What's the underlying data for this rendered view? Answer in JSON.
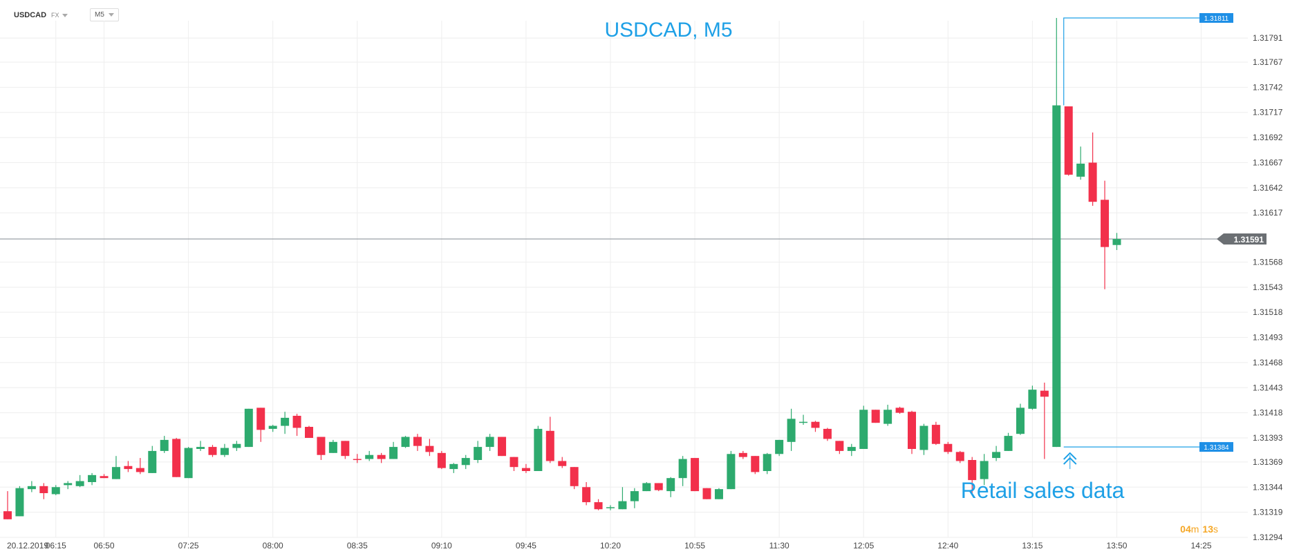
{
  "header": {
    "symbol": "USDCAD",
    "market": "FX",
    "timeframe": "M5"
  },
  "countdown": {
    "minutes": "04",
    "minutes_unit": "m",
    "seconds": "13",
    "seconds_unit": "s"
  },
  "colors": {
    "up": "#2daa6e",
    "down": "#f2304b",
    "annotation": "#1ea0e6",
    "label_bg": "#1e8fe6",
    "current_label_bg": "#6b6f73",
    "grid": "#eeeeee",
    "countdown": "#f5a623"
  },
  "chart_data": {
    "type": "candlestick",
    "title": "USDCAD, M5",
    "y_ticks": [
      "1.31791",
      "1.31767",
      "1.31742",
      "1.31717",
      "1.31692",
      "1.31667",
      "1.31642",
      "1.31617",
      "1.31568",
      "1.31543",
      "1.31518",
      "1.31493",
      "1.31468",
      "1.31443",
      "1.31418",
      "1.31393",
      "1.31369",
      "1.31344",
      "1.31319",
      "1.31294"
    ],
    "ylim": [
      1.31294,
      1.31811
    ],
    "x_date": "20.12.2019",
    "x_ticks": [
      {
        "label": "06:15",
        "index": 4
      },
      {
        "label": "06:50",
        "index": 8
      },
      {
        "label": "07:25",
        "index": 15
      },
      {
        "label": "08:00",
        "index": 22
      },
      {
        "label": "08:35",
        "index": 29
      },
      {
        "label": "09:10",
        "index": 36
      },
      {
        "label": "09:45",
        "index": 43
      },
      {
        "label": "10:20",
        "index": 50
      },
      {
        "label": "10:55",
        "index": 57
      },
      {
        "label": "11:30",
        "index": 64
      },
      {
        "label": "12:05",
        "index": 71
      },
      {
        "label": "12:40",
        "index": 78
      },
      {
        "label": "13:15",
        "index": 85
      },
      {
        "label": "13:50",
        "index": 92
      },
      {
        "label": "14:25",
        "index": 99
      }
    ],
    "current_price": "1.31591",
    "high_label": "1.31811",
    "low_label": "1.31384",
    "annotation_text": "Retail sales data",
    "candles": [
      {
        "o": 1.3132,
        "h": 1.3134,
        "l": 1.31312,
        "c": 1.31312
      },
      {
        "o": 1.31315,
        "h": 1.31345,
        "l": 1.31315,
        "c": 1.31343
      },
      {
        "o": 1.31342,
        "h": 1.3135,
        "l": 1.31339,
        "c": 1.31345
      },
      {
        "o": 1.31345,
        "h": 1.31348,
        "l": 1.31332,
        "c": 1.31338
      },
      {
        "o": 1.31337,
        "h": 1.31346,
        "l": 1.31336,
        "c": 1.31344
      },
      {
        "o": 1.31346,
        "h": 1.3135,
        "l": 1.31342,
        "c": 1.31348
      },
      {
        "o": 1.31345,
        "h": 1.31356,
        "l": 1.31344,
        "c": 1.3135
      },
      {
        "o": 1.31349,
        "h": 1.31358,
        "l": 1.31346,
        "c": 1.31356
      },
      {
        "o": 1.31355,
        "h": 1.31357,
        "l": 1.31353,
        "c": 1.31353
      },
      {
        "o": 1.31352,
        "h": 1.31375,
        "l": 1.31352,
        "c": 1.31364
      },
      {
        "o": 1.31365,
        "h": 1.3137,
        "l": 1.31359,
        "c": 1.31362
      },
      {
        "o": 1.31363,
        "h": 1.31373,
        "l": 1.31357,
        "c": 1.31359
      },
      {
        "o": 1.31358,
        "h": 1.31385,
        "l": 1.31358,
        "c": 1.3138
      },
      {
        "o": 1.3138,
        "h": 1.31395,
        "l": 1.31378,
        "c": 1.31391
      },
      {
        "o": 1.31392,
        "h": 1.31393,
        "l": 1.31354,
        "c": 1.31354
      },
      {
        "o": 1.31353,
        "h": 1.31384,
        "l": 1.31353,
        "c": 1.31383
      },
      {
        "o": 1.31382,
        "h": 1.3139,
        "l": 1.3138,
        "c": 1.31384
      },
      {
        "o": 1.31384,
        "h": 1.31386,
        "l": 1.31374,
        "c": 1.31376
      },
      {
        "o": 1.31376,
        "h": 1.31387,
        "l": 1.31374,
        "c": 1.31383
      },
      {
        "o": 1.31383,
        "h": 1.3139,
        "l": 1.3138,
        "c": 1.31387
      },
      {
        "o": 1.31384,
        "h": 1.31422,
        "l": 1.31384,
        "c": 1.31422
      },
      {
        "o": 1.31423,
        "h": 1.31423,
        "l": 1.31389,
        "c": 1.31401
      },
      {
        "o": 1.31402,
        "h": 1.31406,
        "l": 1.31399,
        "c": 1.31405
      },
      {
        "o": 1.31405,
        "h": 1.31419,
        "l": 1.31397,
        "c": 1.31413
      },
      {
        "o": 1.31415,
        "h": 1.31417,
        "l": 1.31395,
        "c": 1.31403
      },
      {
        "o": 1.31404,
        "h": 1.31405,
        "l": 1.31393,
        "c": 1.31393
      },
      {
        "o": 1.31394,
        "h": 1.31394,
        "l": 1.31371,
        "c": 1.31376
      },
      {
        "o": 1.31378,
        "h": 1.31391,
        "l": 1.31378,
        "c": 1.31389
      },
      {
        "o": 1.3139,
        "h": 1.3139,
        "l": 1.31372,
        "c": 1.31375
      },
      {
        "o": 1.31372,
        "h": 1.31377,
        "l": 1.31368,
        "c": 1.31371
      },
      {
        "o": 1.31372,
        "h": 1.3138,
        "l": 1.3137,
        "c": 1.31376
      },
      {
        "o": 1.31376,
        "h": 1.31378,
        "l": 1.31368,
        "c": 1.31372
      },
      {
        "o": 1.31372,
        "h": 1.31389,
        "l": 1.31372,
        "c": 1.31384
      },
      {
        "o": 1.31384,
        "h": 1.31395,
        "l": 1.31383,
        "c": 1.31394
      },
      {
        "o": 1.31394,
        "h": 1.31397,
        "l": 1.3138,
        "c": 1.31385
      },
      {
        "o": 1.31385,
        "h": 1.31392,
        "l": 1.31375,
        "c": 1.31379
      },
      {
        "o": 1.31378,
        "h": 1.3138,
        "l": 1.31362,
        "c": 1.31363
      },
      {
        "o": 1.31362,
        "h": 1.31368,
        "l": 1.31358,
        "c": 1.31367
      },
      {
        "o": 1.31366,
        "h": 1.31376,
        "l": 1.31362,
        "c": 1.31373
      },
      {
        "o": 1.31371,
        "h": 1.3139,
        "l": 1.31368,
        "c": 1.31384
      },
      {
        "o": 1.31384,
        "h": 1.31397,
        "l": 1.3138,
        "c": 1.31394
      },
      {
        "o": 1.31394,
        "h": 1.31394,
        "l": 1.31375,
        "c": 1.31375
      },
      {
        "o": 1.31374,
        "h": 1.31374,
        "l": 1.3136,
        "c": 1.31364
      },
      {
        "o": 1.31363,
        "h": 1.31367,
        "l": 1.31358,
        "c": 1.3136
      },
      {
        "o": 1.3136,
        "h": 1.31405,
        "l": 1.3136,
        "c": 1.31402
      },
      {
        "o": 1.314,
        "h": 1.31414,
        "l": 1.31368,
        "c": 1.3137
      },
      {
        "o": 1.3137,
        "h": 1.31374,
        "l": 1.31363,
        "c": 1.31365
      },
      {
        "o": 1.31364,
        "h": 1.31364,
        "l": 1.31342,
        "c": 1.31345
      },
      {
        "o": 1.31344,
        "h": 1.31349,
        "l": 1.31326,
        "c": 1.31329
      },
      {
        "o": 1.31329,
        "h": 1.31332,
        "l": 1.31321,
        "c": 1.31322
      },
      {
        "o": 1.31323,
        "h": 1.31326,
        "l": 1.31321,
        "c": 1.31324
      },
      {
        "o": 1.31322,
        "h": 1.31344,
        "l": 1.31322,
        "c": 1.3133
      },
      {
        "o": 1.3133,
        "h": 1.31343,
        "l": 1.31323,
        "c": 1.3134
      },
      {
        "o": 1.3134,
        "h": 1.31349,
        "l": 1.3134,
        "c": 1.31348
      },
      {
        "o": 1.31348,
        "h": 1.31348,
        "l": 1.3134,
        "c": 1.31341
      },
      {
        "o": 1.3134,
        "h": 1.31354,
        "l": 1.31334,
        "c": 1.31353
      },
      {
        "o": 1.31353,
        "h": 1.31375,
        "l": 1.31345,
        "c": 1.31372
      },
      {
        "o": 1.31373,
        "h": 1.31373,
        "l": 1.3134,
        "c": 1.3134
      },
      {
        "o": 1.31343,
        "h": 1.31343,
        "l": 1.31332,
        "c": 1.31332
      },
      {
        "o": 1.31332,
        "h": 1.31343,
        "l": 1.31332,
        "c": 1.31342
      },
      {
        "o": 1.31342,
        "h": 1.3138,
        "l": 1.31342,
        "c": 1.31377
      },
      {
        "o": 1.31378,
        "h": 1.3138,
        "l": 1.31372,
        "c": 1.31374
      },
      {
        "o": 1.31375,
        "h": 1.31375,
        "l": 1.31357,
        "c": 1.31359
      },
      {
        "o": 1.3136,
        "h": 1.31378,
        "l": 1.31357,
        "c": 1.31377
      },
      {
        "o": 1.31377,
        "h": 1.31391,
        "l": 1.31375,
        "c": 1.31391
      },
      {
        "o": 1.31389,
        "h": 1.31422,
        "l": 1.3138,
        "c": 1.31412
      },
      {
        "o": 1.31409,
        "h": 1.31416,
        "l": 1.31406,
        "c": 1.31409
      },
      {
        "o": 1.31409,
        "h": 1.3141,
        "l": 1.31399,
        "c": 1.31403
      },
      {
        "o": 1.31402,
        "h": 1.31403,
        "l": 1.3139,
        "c": 1.31392
      },
      {
        "o": 1.3139,
        "h": 1.3139,
        "l": 1.31377,
        "c": 1.3138
      },
      {
        "o": 1.3138,
        "h": 1.31387,
        "l": 1.31375,
        "c": 1.31384
      },
      {
        "o": 1.31382,
        "h": 1.31425,
        "l": 1.31382,
        "c": 1.31421
      },
      {
        "o": 1.31421,
        "h": 1.31421,
        "l": 1.31408,
        "c": 1.31408
      },
      {
        "o": 1.31407,
        "h": 1.31426,
        "l": 1.31405,
        "c": 1.31421
      },
      {
        "o": 1.31423,
        "h": 1.31424,
        "l": 1.31417,
        "c": 1.31418
      },
      {
        "o": 1.31419,
        "h": 1.3142,
        "l": 1.31377,
        "c": 1.31382
      },
      {
        "o": 1.31381,
        "h": 1.31407,
        "l": 1.31376,
        "c": 1.31405
      },
      {
        "o": 1.31406,
        "h": 1.31409,
        "l": 1.31386,
        "c": 1.31387
      },
      {
        "o": 1.31387,
        "h": 1.31389,
        "l": 1.31377,
        "c": 1.31379
      },
      {
        "o": 1.31379,
        "h": 1.3138,
        "l": 1.31368,
        "c": 1.3137
      },
      {
        "o": 1.31371,
        "h": 1.31374,
        "l": 1.31336,
        "c": 1.31351
      },
      {
        "o": 1.31352,
        "h": 1.31377,
        "l": 1.31346,
        "c": 1.3137
      },
      {
        "o": 1.31373,
        "h": 1.31385,
        "l": 1.3137,
        "c": 1.31379
      },
      {
        "o": 1.3138,
        "h": 1.31398,
        "l": 1.3138,
        "c": 1.31395
      },
      {
        "o": 1.31397,
        "h": 1.31427,
        "l": 1.31396,
        "c": 1.31423
      },
      {
        "o": 1.31422,
        "h": 1.31445,
        "l": 1.31421,
        "c": 1.31441
      },
      {
        "o": 1.3144,
        "h": 1.31448,
        "l": 1.31372,
        "c": 1.31434
      },
      {
        "o": 1.31384,
        "h": 1.31811,
        "l": 1.31384,
        "c": 1.31724
      },
      {
        "o": 1.31723,
        "h": 1.31723,
        "l": 1.31654,
        "c": 1.31655
      },
      {
        "o": 1.31653,
        "h": 1.31683,
        "l": 1.3165,
        "c": 1.31666
      },
      {
        "o": 1.31667,
        "h": 1.31697,
        "l": 1.31624,
        "c": 1.31628
      },
      {
        "o": 1.3163,
        "h": 1.31649,
        "l": 1.31541,
        "c": 1.31583
      },
      {
        "o": 1.31585,
        "h": 1.31597,
        "l": 1.3158,
        "c": 1.31591
      }
    ]
  }
}
